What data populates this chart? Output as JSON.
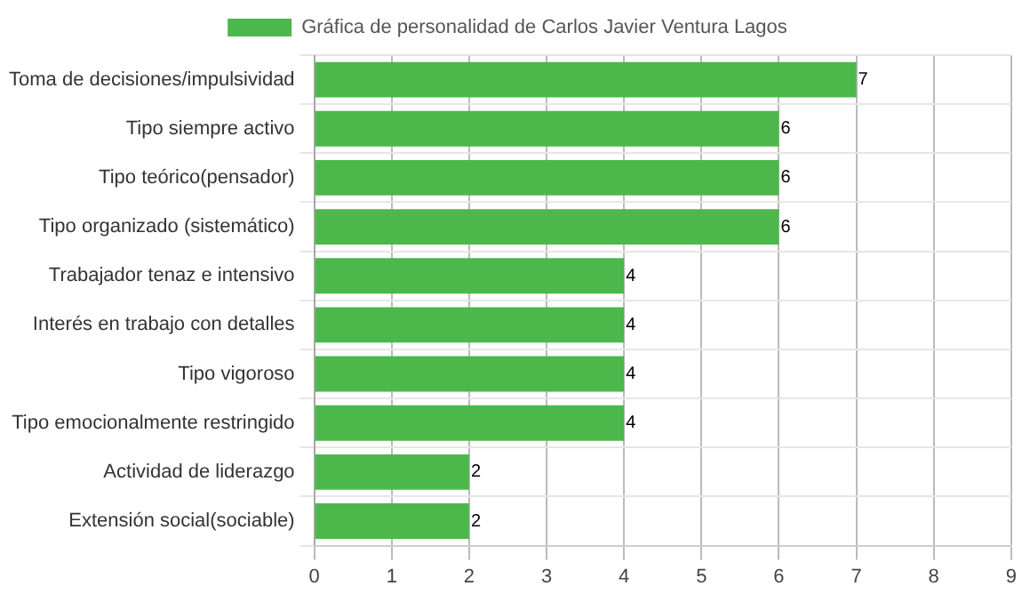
{
  "chart_data": {
    "type": "bar",
    "orientation": "horizontal",
    "categories": [
      "Toma de decisiones/impulsividad",
      "Tipo siempre activo",
      "Tipo teórico(pensador)",
      "Tipo organizado (sistemático)",
      "Trabajador tenaz e intensivo",
      "Interés en trabajo con detalles",
      "Tipo vigoroso",
      "Tipo emocionalmente restringido",
      "Actividad de liderazgo",
      "Extensión social(sociable)"
    ],
    "series": [
      {
        "name": "Gráfica de personalidad de Carlos Javier Ventura Lagos",
        "color": "#4cb84c",
        "values": [
          7,
          6,
          6,
          6,
          4,
          4,
          4,
          4,
          2,
          2
        ]
      }
    ],
    "xlim": [
      0,
      9
    ],
    "xticks": [
      0,
      1,
      2,
      3,
      4,
      5,
      6,
      7,
      8,
      9
    ],
    "grid": true,
    "legend": "top",
    "data_labels": true
  }
}
